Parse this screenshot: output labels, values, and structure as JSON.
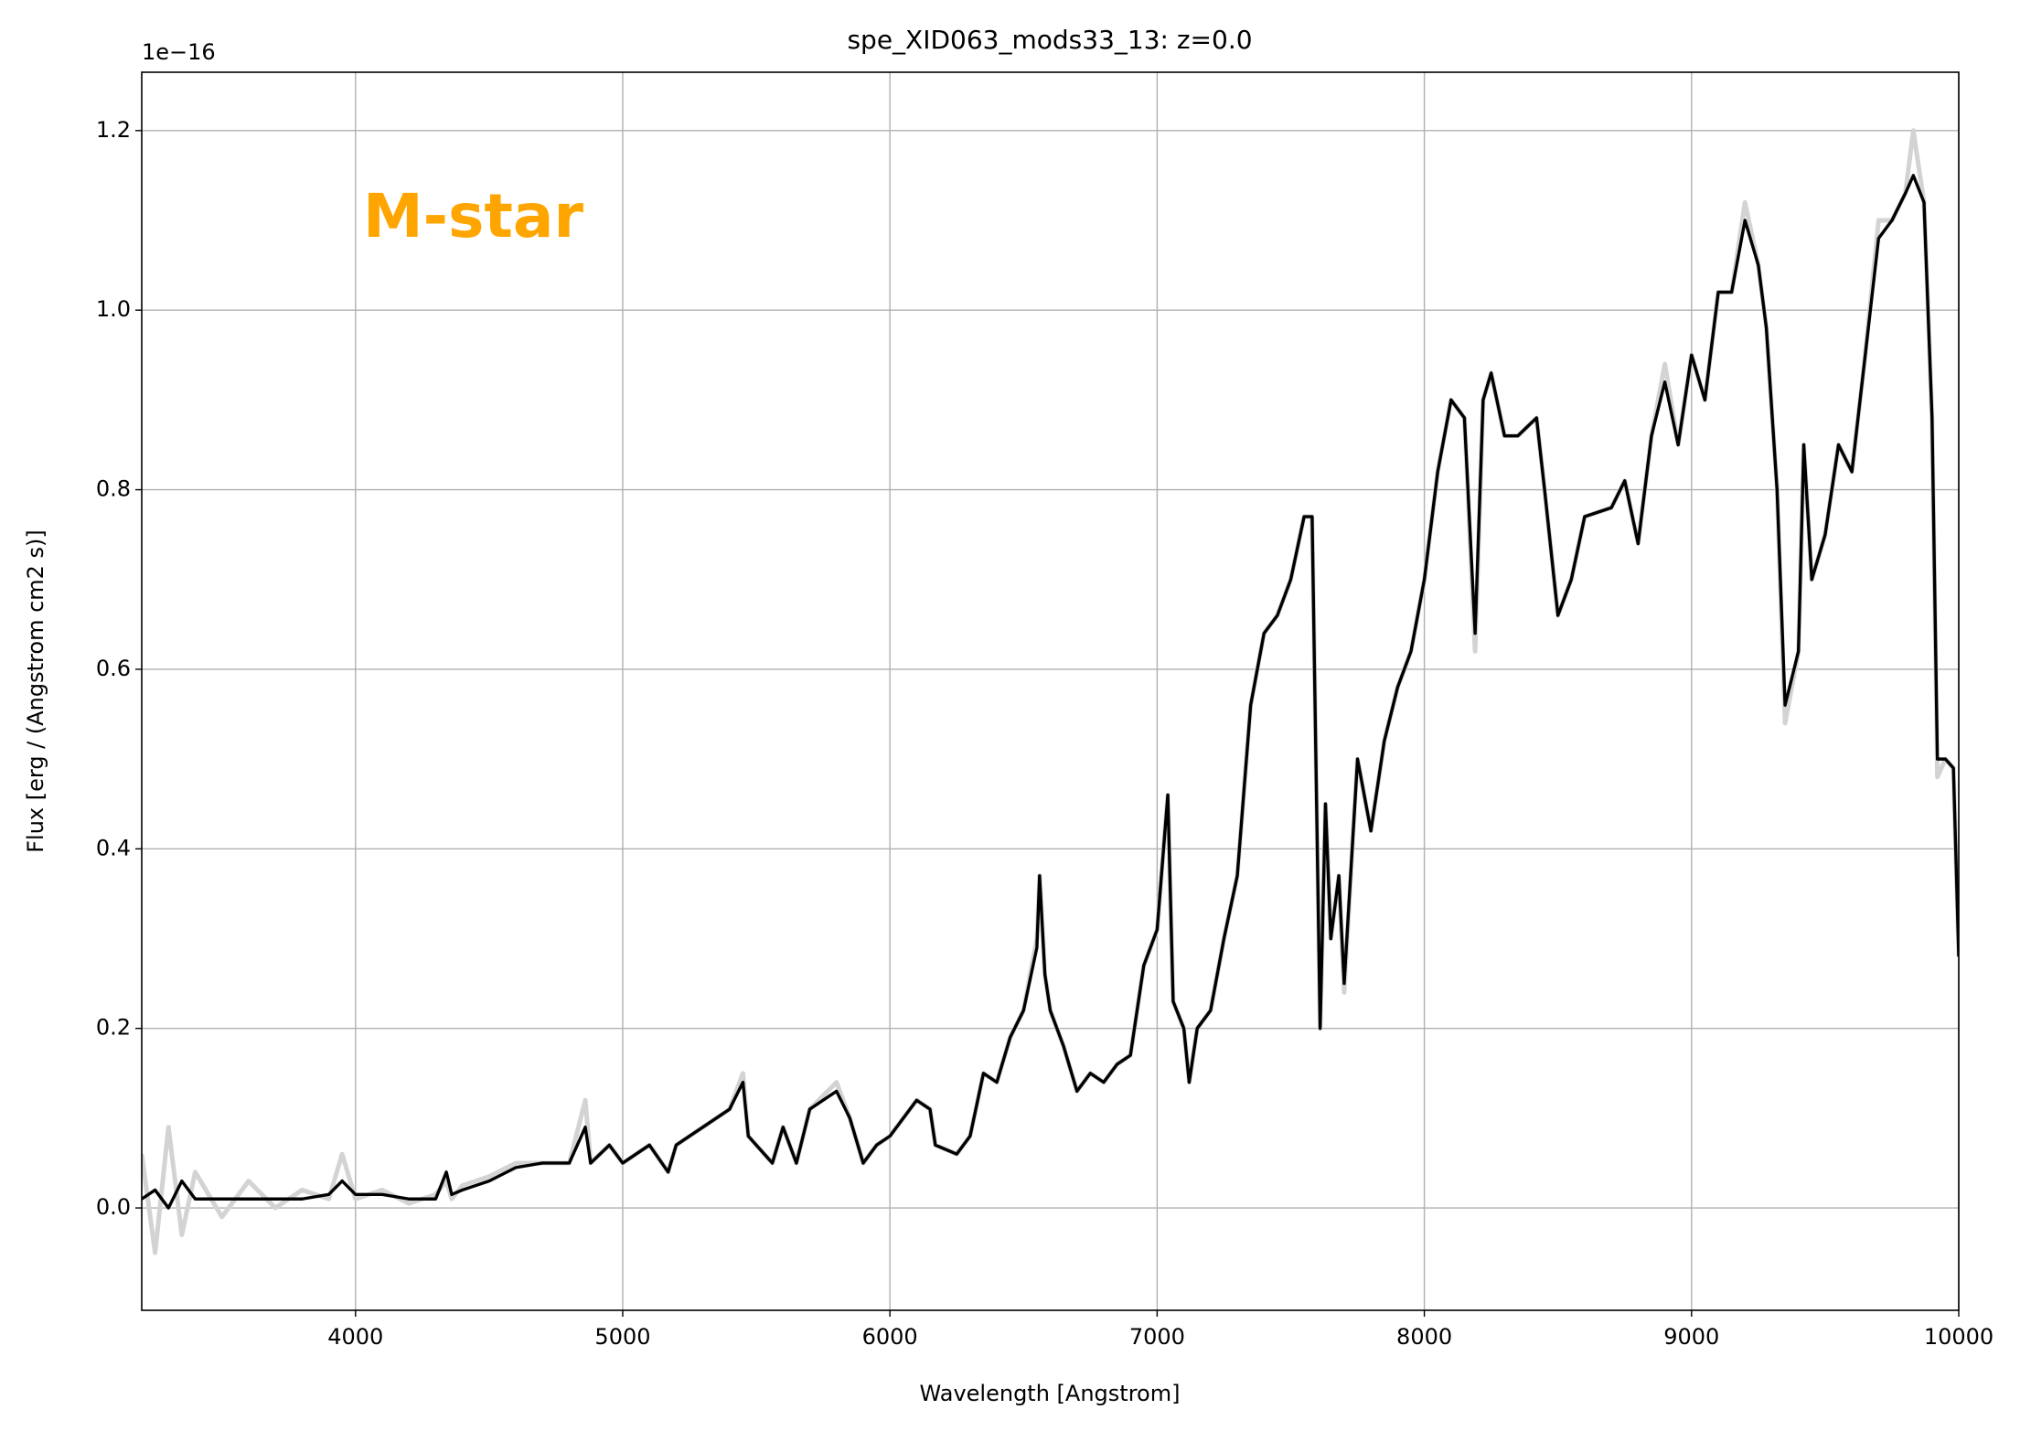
{
  "chart_data": {
    "type": "line",
    "title": "spe_XID063_mods33_13: z=0.0",
    "x_label": "Wavelength [Angstrom]",
    "y_label": "Flux [erg / (Angstrom cm2 s)]",
    "y_offset_label": "1e−16",
    "annotation": "M-star",
    "annotation_color": "#ffa500",
    "grid": true,
    "xlim": [
      3200,
      10000
    ],
    "ylim": [
      -0.114,
      1.265
    ],
    "xticks": [
      4000,
      5000,
      6000,
      7000,
      8000,
      9000,
      10000
    ],
    "yticks": [
      {
        "value": 0,
        "label": "0.0"
      },
      0.2,
      0.4,
      0.6,
      0.8,
      {
        "value": 1,
        "label": "1.0"
      },
      1.2
    ],
    "x": [
      3200,
      3250,
      3300,
      3350,
      3400,
      3500,
      3600,
      3700,
      3800,
      3900,
      3950,
      4000,
      4100,
      4200,
      4300,
      4340,
      4360,
      4400,
      4500,
      4600,
      4700,
      4800,
      4860,
      4880,
      4950,
      5000,
      5100,
      5170,
      5200,
      5300,
      5400,
      5450,
      5470,
      5500,
      5560,
      5600,
      5650,
      5700,
      5800,
      5850,
      5900,
      5950,
      6000,
      6050,
      6100,
      6150,
      6170,
      6250,
      6300,
      6350,
      6400,
      6450,
      6500,
      6550,
      6560,
      6580,
      6600,
      6650,
      6700,
      6750,
      6800,
      6850,
      6900,
      6950,
      7000,
      7040,
      7060,
      7100,
      7120,
      7150,
      7200,
      7250,
      7300,
      7350,
      7400,
      7450,
      7500,
      7550,
      7580,
      7610,
      7630,
      7650,
      7680,
      7700,
      7730,
      7750,
      7800,
      7850,
      7900,
      7950,
      8000,
      8050,
      8100,
      8150,
      8190,
      8220,
      8250,
      8300,
      8350,
      8420,
      8450,
      8500,
      8550,
      8600,
      8700,
      8750,
      8800,
      8850,
      8900,
      8950,
      9000,
      9050,
      9100,
      9150,
      9200,
      9250,
      9280,
      9320,
      9350,
      9400,
      9420,
      9450,
      9500,
      9550,
      9600,
      9650,
      9700,
      9750,
      9800,
      9830,
      9870,
      9900,
      9920,
      9950,
      9980,
      10000
    ],
    "series": [
      {
        "color": "#d3d3d3",
        "values": [
          0.06,
          -0.05,
          0.09,
          -0.03,
          0.04,
          -0.01,
          0.03,
          0.0,
          0.02,
          0.01,
          0.06,
          0.01,
          0.02,
          0.005,
          0.015,
          0.03,
          0.01,
          0.025,
          0.035,
          0.05,
          0.05,
          0.05,
          0.12,
          0.05,
          0.07,
          0.05,
          0.07,
          0.04,
          0.07,
          0.09,
          0.11,
          0.15,
          0.08,
          0.07,
          0.05,
          0.09,
          0.05,
          0.11,
          0.14,
          0.1,
          0.05,
          0.07,
          0.08,
          0.1,
          0.12,
          0.11,
          0.07,
          0.06,
          0.08,
          0.15,
          0.14,
          0.19,
          0.22,
          0.3,
          0.37,
          0.26,
          0.22,
          0.18,
          0.13,
          0.15,
          0.14,
          0.16,
          0.17,
          0.27,
          0.31,
          0.46,
          0.23,
          0.2,
          0.14,
          0.2,
          0.22,
          0.3,
          0.37,
          0.56,
          0.64,
          0.66,
          0.7,
          0.77,
          0.77,
          0.2,
          0.45,
          0.3,
          0.37,
          0.24,
          0.4,
          0.5,
          0.42,
          0.52,
          0.58,
          0.62,
          0.7,
          0.82,
          0.9,
          0.88,
          0.62,
          0.9,
          0.93,
          0.86,
          0.86,
          0.88,
          0.8,
          0.66,
          0.7,
          0.77,
          0.78,
          0.81,
          0.74,
          0.86,
          0.94,
          0.85,
          0.95,
          0.9,
          1.02,
          1.02,
          1.12,
          1.05,
          0.98,
          0.8,
          0.54,
          0.62,
          0.85,
          0.7,
          0.75,
          0.85,
          0.82,
          0.95,
          1.1,
          1.1,
          1.13,
          1.2,
          1.12,
          0.88,
          0.48,
          0.5,
          0.49,
          0.28
        ]
      },
      {
        "color": "#000000",
        "values": [
          0.01,
          0.02,
          0.0,
          0.03,
          0.01,
          0.01,
          0.01,
          0.01,
          0.01,
          0.015,
          0.03,
          0.015,
          0.015,
          0.01,
          0.01,
          0.04,
          0.015,
          0.02,
          0.03,
          0.045,
          0.05,
          0.05,
          0.09,
          0.05,
          0.07,
          0.05,
          0.07,
          0.04,
          0.07,
          0.09,
          0.11,
          0.14,
          0.08,
          0.07,
          0.05,
          0.09,
          0.05,
          0.11,
          0.13,
          0.1,
          0.05,
          0.07,
          0.08,
          0.1,
          0.12,
          0.11,
          0.07,
          0.06,
          0.08,
          0.15,
          0.14,
          0.19,
          0.22,
          0.29,
          0.37,
          0.26,
          0.22,
          0.18,
          0.13,
          0.15,
          0.14,
          0.16,
          0.17,
          0.27,
          0.31,
          0.46,
          0.23,
          0.2,
          0.14,
          0.2,
          0.22,
          0.3,
          0.37,
          0.56,
          0.64,
          0.66,
          0.7,
          0.77,
          0.77,
          0.2,
          0.45,
          0.3,
          0.37,
          0.25,
          0.4,
          0.5,
          0.42,
          0.52,
          0.58,
          0.62,
          0.7,
          0.82,
          0.9,
          0.88,
          0.64,
          0.9,
          0.93,
          0.86,
          0.86,
          0.88,
          0.8,
          0.66,
          0.7,
          0.77,
          0.78,
          0.81,
          0.74,
          0.86,
          0.92,
          0.85,
          0.95,
          0.9,
          1.02,
          1.02,
          1.1,
          1.05,
          0.98,
          0.8,
          0.56,
          0.62,
          0.85,
          0.7,
          0.75,
          0.85,
          0.82,
          0.95,
          1.08,
          1.1,
          1.13,
          1.15,
          1.12,
          0.88,
          0.5,
          0.5,
          0.49,
          0.28
        ]
      }
    ]
  }
}
